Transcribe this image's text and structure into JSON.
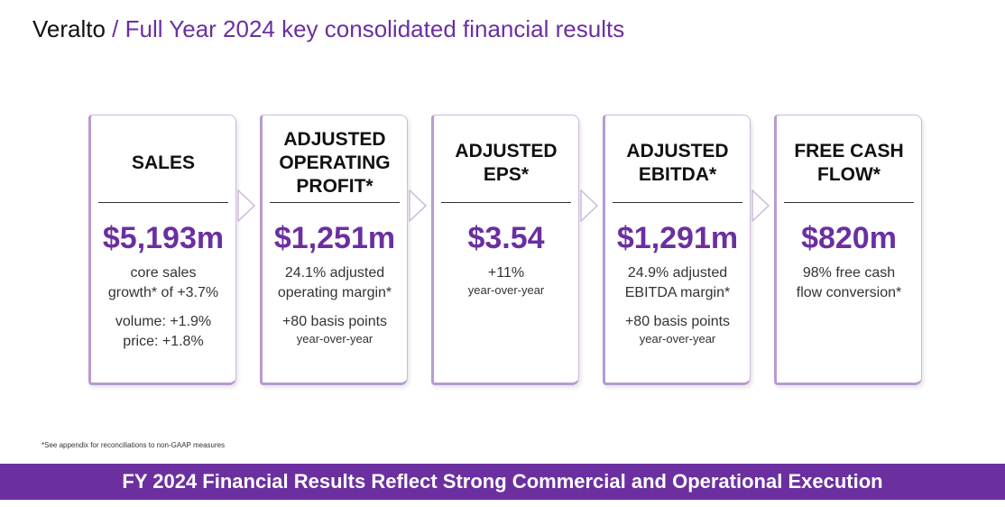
{
  "header": {
    "brand": "Veralto",
    "title": " / Full Year 2024 key consolidated financial results"
  },
  "cards": [
    {
      "title_lines": [
        "SALES"
      ],
      "value": "$5,193m",
      "lines": [
        {
          "text": "core sales",
          "style": "l"
        },
        {
          "text": "growth* of +3.7%",
          "style": "l"
        },
        {
          "text": "",
          "style": "gap"
        },
        {
          "text": "volume:  +1.9%",
          "style": "l"
        },
        {
          "text": "price:  +1.8%",
          "style": "l"
        }
      ]
    },
    {
      "title_lines": [
        "ADJUSTED",
        "OPERATING",
        "PROFIT*"
      ],
      "value": "$1,251m",
      "lines": [
        {
          "text": "24.1% adjusted",
          "style": "l"
        },
        {
          "text": "operating margin*",
          "style": "l"
        },
        {
          "text": "",
          "style": "gap"
        },
        {
          "text": "+80 basis points",
          "style": "l"
        },
        {
          "text": "year-over-year",
          "style": "s"
        }
      ]
    },
    {
      "title_lines": [
        "ADJUSTED",
        "EPS*"
      ],
      "value": "$3.54",
      "lines": [
        {
          "text": "+11%",
          "style": "l"
        },
        {
          "text": "year-over-year",
          "style": "s"
        }
      ]
    },
    {
      "title_lines": [
        "ADJUSTED",
        "EBITDA*"
      ],
      "value": "$1,291m",
      "lines": [
        {
          "text": "24.9% adjusted",
          "style": "l"
        },
        {
          "text": "EBITDA margin*",
          "style": "l"
        },
        {
          "text": "",
          "style": "gap"
        },
        {
          "text": "+80 basis points",
          "style": "l"
        },
        {
          "text": "year-over-year",
          "style": "s"
        }
      ]
    },
    {
      "title_lines": [
        "FREE CASH",
        "FLOW*"
      ],
      "value": "$820m",
      "lines": [
        {
          "text": "98% free cash",
          "style": "l"
        },
        {
          "text": "flow conversion*",
          "style": "l"
        }
      ]
    }
  ],
  "footnote": "*See appendix for reconciliations to non-GAAP measures",
  "banner": "FY 2024 Financial Results Reflect Strong Commercial and Operational Execution",
  "colors": {
    "accent": "#6b2fa0",
    "card_border": "#b89ad2"
  }
}
